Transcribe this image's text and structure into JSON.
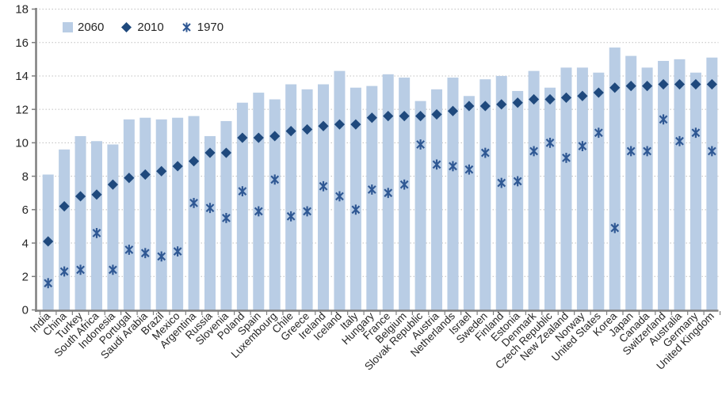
{
  "chart_data": {
    "type": "bar",
    "title": "",
    "xlabel": "",
    "ylabel": "",
    "ylim": [
      0,
      18
    ],
    "yticks": [
      0,
      2,
      4,
      6,
      8,
      10,
      12,
      14,
      16,
      18
    ],
    "grid": "horizontal-dotted",
    "legend_position": "top-left",
    "categories": [
      "India",
      "China",
      "Turkey",
      "South Africa",
      "Indonesia",
      "Portugal",
      "Saudi Arabia",
      "Brazil",
      "Mexico",
      "Argentina",
      "Russia",
      "Slovenia",
      "Poland",
      "Spain",
      "Luxembourg",
      "Chile",
      "Greece",
      "Ireland",
      "Iceland",
      "Italy",
      "Hungary",
      "France",
      "Belgium",
      "Slovak Republic",
      "Austria",
      "Netherlands",
      "Israel",
      "Sweden",
      "Finland",
      "Estonia",
      "Denmark",
      "Czech Republic",
      "New Zealand",
      "Norway",
      "United States",
      "Korea",
      "Japan",
      "Canada",
      "Switzerland",
      "Australia",
      "Germany",
      "United Kingdom"
    ],
    "series": [
      {
        "name": "2060",
        "marker": "bar",
        "color": "#B9CDE5",
        "values": [
          8.1,
          9.6,
          10.4,
          10.1,
          9.9,
          11.4,
          11.5,
          11.4,
          11.5,
          11.6,
          10.4,
          11.3,
          12.4,
          13.0,
          12.6,
          13.5,
          13.2,
          13.5,
          14.3,
          13.3,
          13.4,
          14.1,
          13.9,
          12.5,
          13.2,
          13.9,
          12.8,
          13.8,
          14.0,
          13.1,
          14.3,
          13.3,
          14.5,
          14.5,
          14.2,
          15.7,
          15.2,
          14.5,
          14.9,
          15.0,
          14.2,
          15.1
        ]
      },
      {
        "name": "2010",
        "marker": "diamond",
        "color": "#1F497D",
        "values": [
          4.1,
          6.2,
          6.8,
          6.9,
          7.5,
          7.9,
          8.1,
          8.3,
          8.6,
          8.9,
          9.4,
          9.4,
          10.3,
          10.3,
          10.4,
          10.7,
          10.8,
          11.0,
          11.1,
          11.1,
          11.5,
          11.6,
          11.6,
          11.6,
          11.7,
          11.9,
          12.2,
          12.2,
          12.3,
          12.4,
          12.6,
          12.6,
          12.7,
          12.8,
          13.0,
          13.3,
          13.4,
          13.4,
          13.5,
          13.5,
          13.5,
          13.5
        ]
      },
      {
        "name": "1970",
        "marker": "asterisk",
        "color": "#2F5894",
        "values": [
          1.6,
          2.3,
          2.4,
          4.6,
          2.4,
          3.6,
          3.4,
          3.2,
          3.5,
          6.4,
          6.1,
          5.5,
          7.1,
          5.9,
          7.8,
          5.6,
          5.9,
          7.4,
          6.8,
          6.0,
          7.2,
          7.0,
          7.5,
          9.9,
          8.7,
          8.6,
          8.4,
          9.4,
          7.6,
          7.7,
          9.5,
          10.0,
          9.1,
          9.8,
          10.6,
          4.9,
          9.5,
          9.5,
          11.4,
          10.1,
          10.6,
          9.5
        ]
      }
    ]
  },
  "colors": {
    "background": "#FFFFFF",
    "axis": "#7F7F7F",
    "gridline": "#BFBFBF",
    "text": "#262626"
  }
}
